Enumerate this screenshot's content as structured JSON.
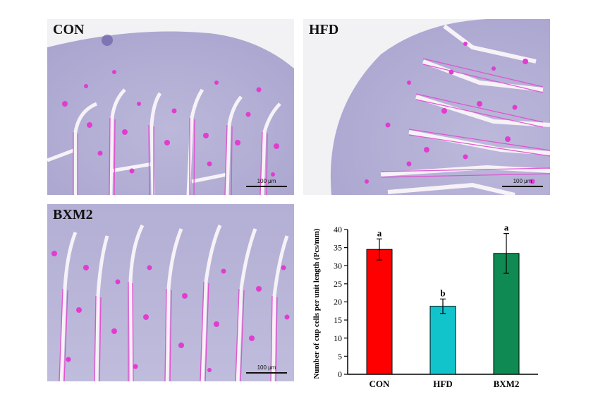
{
  "panels": [
    {
      "label": "CON",
      "scale": "100 μm"
    },
    {
      "label": "HFD",
      "scale": "100 μm"
    },
    {
      "label": "BXM2",
      "scale": "100 μm"
    }
  ],
  "colors": {
    "tissue": "#b7b4d6",
    "stain": "#e040c8",
    "background": "#f3f2f4"
  },
  "chart_data": {
    "type": "bar",
    "categories": [
      "CON",
      "HFD",
      "BXM2"
    ],
    "values": [
      34.5,
      18.8,
      33.4
    ],
    "errors": [
      2.9,
      2.0,
      5.5
    ],
    "significance": [
      "a",
      "b",
      "a"
    ],
    "bar_colors": [
      "#ff0000",
      "#11c4cc",
      "#0e8a52"
    ],
    "ylabel": "Number of cup cells per unit length (Pcs/mm)",
    "xlabel": "",
    "ylim": [
      0,
      40
    ],
    "yticks": [
      0,
      5,
      10,
      15,
      20,
      25,
      30,
      35,
      40
    ],
    "grid": false
  }
}
